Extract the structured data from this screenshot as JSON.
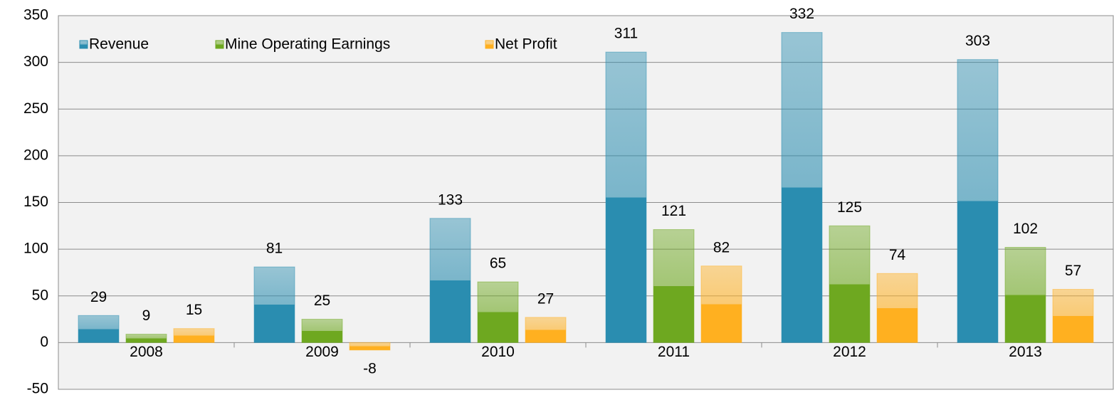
{
  "chart_data": {
    "type": "bar",
    "categories": [
      "2008",
      "2009",
      "2010",
      "2011",
      "2012",
      "2013"
    ],
    "series": [
      {
        "name": "Revenue",
        "color": "#2a8db0",
        "values": [
          29,
          81,
          133,
          311,
          332,
          303
        ]
      },
      {
        "name": "Mine Operating Earnings",
        "color": "#6ea820",
        "values": [
          9,
          25,
          65,
          121,
          125,
          102
        ]
      },
      {
        "name": "Net Profit",
        "color": "#ffb020",
        "values": [
          15,
          -8,
          27,
          82,
          74,
          57
        ]
      }
    ],
    "ylim": [
      -50,
      350
    ],
    "yticks": [
      -50,
      0,
      50,
      100,
      150,
      200,
      250,
      300,
      350
    ],
    "grid": true,
    "legend": "top-left"
  }
}
